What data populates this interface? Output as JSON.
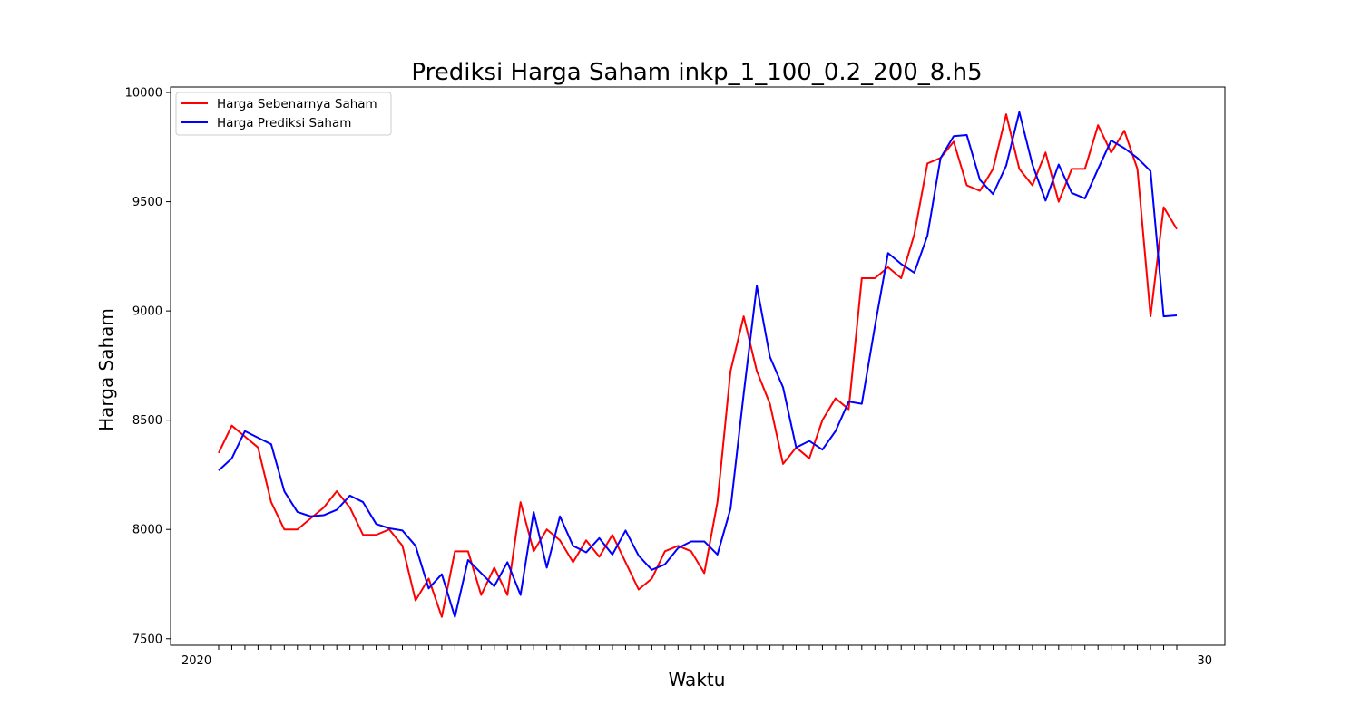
{
  "chart_data": {
    "type": "line",
    "title": "Prediksi Harga Saham inkp_1_100_0.2_200_8.h5",
    "xlabel": "Waktu",
    "ylabel": "Harga Saham",
    "ylim": [
      7470,
      10025
    ],
    "y_ticks": [
      7500,
      8000,
      8500,
      9000,
      9500,
      10000
    ],
    "x_tick_labels_visible": [
      "2020",
      "30"
    ],
    "legend_position": "top-left",
    "grid": false,
    "series": [
      {
        "name": "Harga Sebenarnya Saham",
        "color": "#ff0000",
        "values": [
          8350,
          8475,
          8425,
          8375,
          8125,
          8000,
          8000,
          8050,
          8100,
          8175,
          8100,
          7975,
          7975,
          8000,
          7925,
          7675,
          7775,
          7600,
          7900,
          7900,
          7700,
          7825,
          7700,
          8125,
          7900,
          8000,
          7950,
          7850,
          7950,
          7875,
          7975,
          7850,
          7725,
          7775,
          7900,
          7925,
          7900,
          7800,
          8125,
          8725,
          8975,
          8725,
          8575,
          8300,
          8375,
          8325,
          8500,
          8600,
          8550,
          9150,
          9150,
          9200,
          9150,
          9350,
          9675,
          9700,
          9775,
          9575,
          9550,
          9650,
          9900,
          9650,
          9575,
          9725,
          9500,
          9650,
          9650,
          9850,
          9725,
          9825,
          9650,
          8975,
          9475,
          9375
        ]
      },
      {
        "name": "Harga Prediksi Saham",
        "color": "#0000ff",
        "values": [
          8270,
          8325,
          8450,
          8420,
          8390,
          8175,
          8080,
          8060,
          8065,
          8090,
          8155,
          8125,
          8025,
          8005,
          7995,
          7925,
          7730,
          7795,
          7600,
          7860,
          7800,
          7740,
          7850,
          7700,
          8080,
          7825,
          8060,
          7925,
          7895,
          7960,
          7885,
          7995,
          7880,
          7815,
          7840,
          7915,
          7945,
          7945,
          7885,
          8095,
          8620,
          9115,
          8790,
          8650,
          8375,
          8405,
          8365,
          8450,
          8585,
          8575,
          8930,
          9265,
          9215,
          9175,
          9345,
          9700,
          9800,
          9805,
          9600,
          9535,
          9665,
          9910,
          9670,
          9505,
          9670,
          9540,
          9515,
          9650,
          9780,
          9745,
          9700,
          9640,
          8975,
          8980
        ]
      }
    ]
  }
}
